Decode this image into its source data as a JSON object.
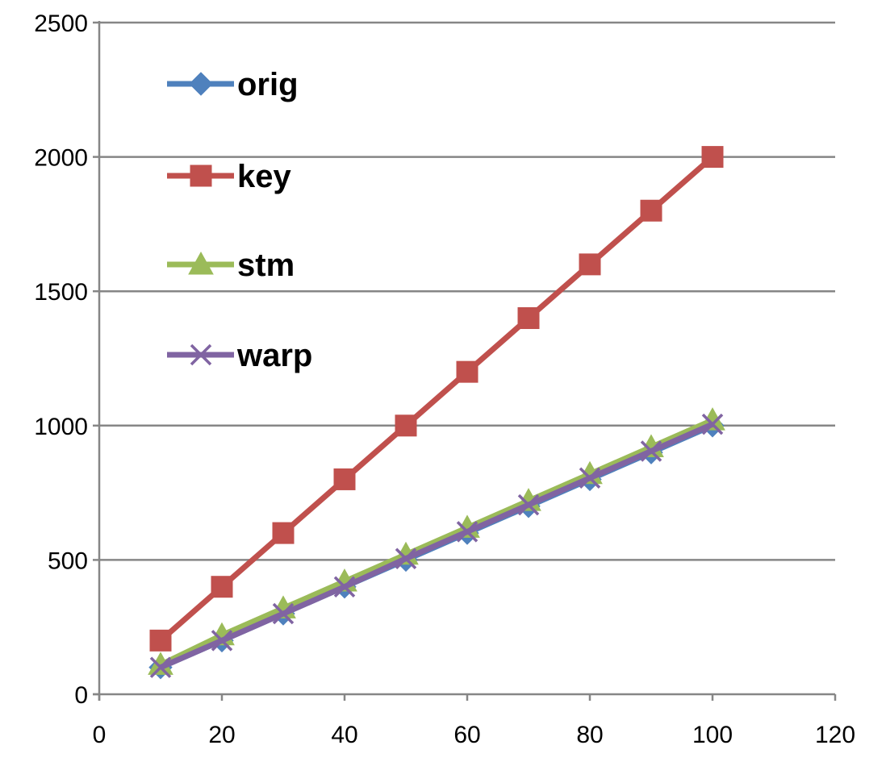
{
  "chart_data": {
    "type": "line",
    "title": "",
    "xlabel": "",
    "ylabel": "",
    "xlim": [
      0,
      120
    ],
    "ylim": [
      0,
      2500
    ],
    "xticks": [
      0,
      20,
      40,
      60,
      80,
      100,
      120
    ],
    "yticks": [
      0,
      500,
      1000,
      1500,
      2000,
      2500
    ],
    "grid": "horizontal",
    "legend_position": "top-left (inside plot)",
    "x": [
      10,
      20,
      30,
      40,
      50,
      60,
      70,
      80,
      90,
      100
    ],
    "series": [
      {
        "name": "orig",
        "marker": "diamond",
        "color": "#4F81BD",
        "values": [
          100,
          200,
          300,
          400,
          500,
          600,
          700,
          800,
          900,
          1000
        ]
      },
      {
        "name": "key",
        "marker": "square",
        "color": "#C0504D",
        "values": [
          200,
          400,
          600,
          800,
          1000,
          1200,
          1400,
          1600,
          1800,
          2000
        ]
      },
      {
        "name": "stm",
        "marker": "triangle",
        "color": "#9BBB59",
        "values": [
          110,
          220,
          320,
          420,
          520,
          620,
          720,
          820,
          920,
          1020
        ]
      },
      {
        "name": "warp",
        "marker": "x",
        "color": "#8064A2",
        "values": [
          100,
          200,
          300,
          400,
          505,
          605,
          705,
          805,
          905,
          1005
        ]
      }
    ]
  }
}
